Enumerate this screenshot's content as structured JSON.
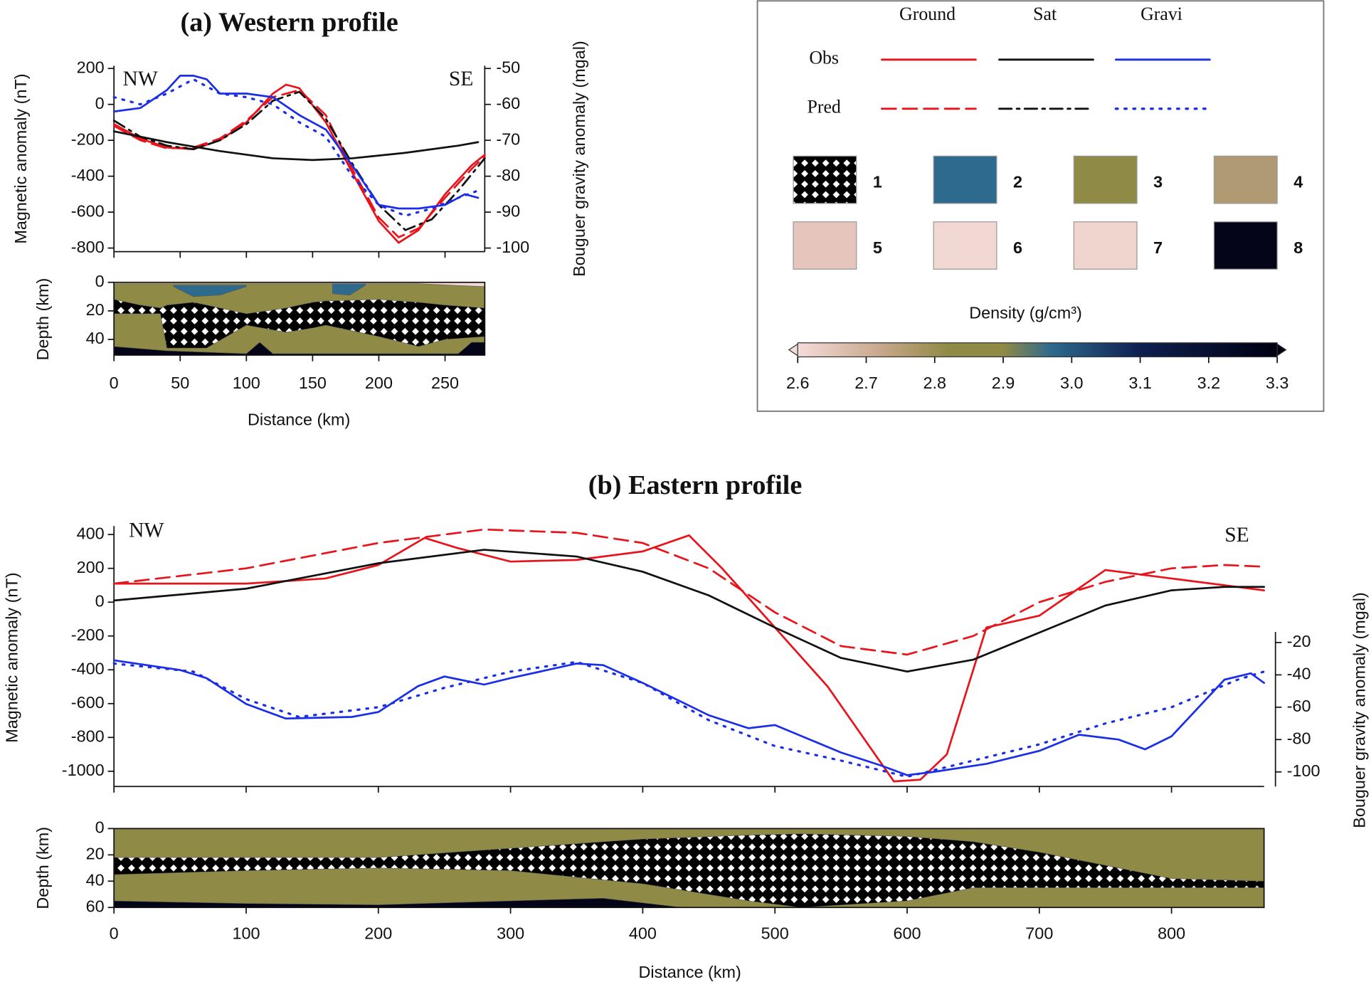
{
  "chart_data": [
    {
      "type": "line",
      "title": "(a) Western profile",
      "ylabel": "Magnetic anomaly (nT)",
      "y2label": "Bouguer gravity anomaly (mgal)",
      "annotations": [
        "NW",
        "SE"
      ],
      "xlim": [
        0,
        280
      ],
      "ylim": [
        -820,
        215
      ],
      "yticks": [
        -800,
        -600,
        -400,
        -200,
        0,
        200
      ],
      "y2lim": [
        -101,
        -49.25
      ],
      "y2ticks": [
        -100,
        -90,
        -80,
        -70,
        -60,
        -50
      ],
      "series": [
        {
          "source": "Ground",
          "name": "Obs",
          "color": "#e8141c",
          "dash": "solid",
          "x": [
            0,
            20,
            40,
            60,
            80,
            100,
            120,
            130,
            140,
            160,
            180,
            200,
            215,
            230,
            250,
            270,
            280
          ],
          "values": [
            -110,
            -190,
            -240,
            -250,
            -200,
            -100,
            60,
            110,
            90,
            -100,
            -380,
            -650,
            -770,
            -700,
            -500,
            -340,
            -280
          ]
        },
        {
          "source": "Ground",
          "name": "Pred",
          "color": "#e8141c",
          "dash": "dashed",
          "x": [
            0,
            20,
            40,
            60,
            80,
            100,
            120,
            140,
            160,
            180,
            200,
            215,
            230,
            250,
            270,
            280
          ],
          "values": [
            -120,
            -200,
            -245,
            -240,
            -190,
            -90,
            40,
            80,
            -60,
            -360,
            -630,
            -740,
            -690,
            -520,
            -360,
            -290
          ]
        },
        {
          "source": "Sat",
          "name": "Obs",
          "color": "#111111",
          "dash": "solid",
          "x": [
            0,
            40,
            80,
            120,
            150,
            180,
            220,
            260,
            275
          ],
          "values": [
            -150,
            -210,
            -260,
            -300,
            -310,
            -300,
            -270,
            -230,
            -210
          ]
        },
        {
          "source": "Sat",
          "name": "Pred",
          "color": "#111111",
          "dash": "dashdot",
          "x": [
            0,
            20,
            40,
            60,
            80,
            100,
            120,
            140,
            160,
            180,
            200,
            220,
            240,
            260,
            280
          ],
          "values": [
            -90,
            -180,
            -230,
            -250,
            -200,
            -110,
            20,
            70,
            -80,
            -330,
            -560,
            -700,
            -640,
            -480,
            -300
          ]
        },
        {
          "source": "Gravi",
          "name": "Obs",
          "color": "#1a2ee8",
          "dash": "solid",
          "axis": "y2",
          "x": [
            0,
            20,
            40,
            50,
            60,
            70,
            80,
            100,
            120,
            140,
            160,
            180,
            200,
            215,
            230,
            250,
            265,
            275
          ],
          "values": [
            -62,
            -61,
            -56,
            -52,
            -52,
            -53,
            -57,
            -57,
            -58,
            -63,
            -67,
            -77,
            -88,
            -89,
            -89,
            -88,
            -85,
            -86
          ]
        },
        {
          "source": "Gravi",
          "name": "Pred",
          "color": "#1a2ee8",
          "dash": "dotted",
          "axis": "y2",
          "x": [
            0,
            20,
            40,
            60,
            80,
            100,
            120,
            140,
            160,
            180,
            200,
            220,
            240,
            260,
            275
          ],
          "values": [
            -58,
            -60,
            -57,
            -53,
            -57,
            -58,
            -60,
            -65,
            -69,
            -80,
            -88,
            -91,
            -89,
            -86,
            -84
          ]
        }
      ]
    },
    {
      "type": "section",
      "ylabel": "Depth (km)",
      "xlabel": "Distance (km)",
      "xlim": [
        0,
        280
      ],
      "xticks": [
        0,
        50,
        100,
        150,
        200,
        250
      ],
      "ylim": [
        51,
        0
      ],
      "yticks": [
        0,
        20,
        40
      ],
      "layers": [
        {
          "unit": "3",
          "x": [
            0,
            280
          ],
          "top": [
            0,
            0
          ],
          "bottom": [
            51,
            51
          ]
        },
        {
          "unit": "6",
          "x": [
            0,
            100,
            230,
            280
          ],
          "top": [
            0,
            0,
            0,
            0
          ],
          "bottom": [
            1,
            1,
            1,
            3
          ]
        },
        {
          "unit": "2",
          "x": [
            45,
            60,
            80,
            100
          ],
          "top": [
            2,
            2,
            2,
            2
          ],
          "bottom": [
            3,
            10,
            9,
            3
          ]
        },
        {
          "unit": "2",
          "x": [
            165,
            178,
            190
          ],
          "top": [
            1,
            1,
            1
          ],
          "bottom": [
            8,
            9,
            2
          ]
        },
        {
          "unit": "1",
          "x": [
            0,
            20,
            35,
            40,
            60,
            70,
            100,
            130,
            150,
            160,
            200,
            230,
            250,
            280
          ],
          "top": [
            12,
            16,
            18,
            16,
            14,
            16,
            22,
            18,
            14,
            13,
            12,
            14,
            16,
            18
          ],
          "bottom": [
            22,
            22,
            22,
            46,
            46,
            46,
            30,
            35,
            32,
            30,
            38,
            45,
            40,
            38
          ]
        },
        {
          "unit": "8",
          "x": [
            0,
            40,
            100,
            110,
            120,
            260,
            270,
            280
          ],
          "top": [
            45,
            48,
            50,
            42,
            50,
            50,
            42,
            42
          ],
          "bottom": [
            51,
            51,
            51,
            51,
            51,
            51,
            51,
            51
          ]
        }
      ]
    },
    {
      "type": "line",
      "title": "(b) Eastern profile",
      "ylabel": "Magnetic anomaly (nT)",
      "y2label": "Bouguer gravity anomaly (mgal)",
      "annotations": [
        "NW",
        "SE"
      ],
      "xlim": [
        0,
        870
      ],
      "ylim": [
        -1090,
        450
      ],
      "yticks": [
        -1000,
        -800,
        -600,
        -400,
        -200,
        0,
        200,
        400
      ],
      "y2lim": [
        -109,
        52
      ],
      "y2ticks": [
        -100,
        -80,
        -60,
        -40,
        -20
      ],
      "series": [
        {
          "source": "Ground",
          "name": "Obs",
          "color": "#e8141c",
          "dash": "solid",
          "x": [
            0,
            100,
            160,
            200,
            235,
            260,
            300,
            350,
            400,
            435,
            460,
            500,
            540,
            590,
            610,
            630,
            660,
            700,
            750,
            800,
            870
          ],
          "values": [
            110,
            110,
            140,
            220,
            380,
            320,
            240,
            250,
            300,
            395,
            200,
            -150,
            -500,
            -1060,
            -1050,
            -900,
            -150,
            -80,
            190,
            140,
            70
          ]
        },
        {
          "source": "Ground",
          "name": "Pred",
          "color": "#e8141c",
          "dash": "dashed",
          "x": [
            0,
            100,
            200,
            280,
            350,
            400,
            450,
            500,
            550,
            600,
            650,
            700,
            750,
            800,
            840,
            870
          ],
          "values": [
            110,
            200,
            350,
            430,
            410,
            350,
            200,
            -60,
            -260,
            -310,
            -200,
            0,
            120,
            200,
            220,
            210
          ]
        },
        {
          "source": "Sat",
          "name": "Obs",
          "color": "#111111",
          "dash": "solid",
          "x": [
            0,
            100,
            200,
            280,
            350,
            400,
            450,
            500,
            550,
            600,
            650,
            700,
            750,
            800,
            840,
            870
          ],
          "values": [
            10,
            80,
            230,
            310,
            270,
            180,
            40,
            -150,
            -330,
            -410,
            -340,
            -180,
            -20,
            70,
            90,
            90
          ]
        },
        {
          "source": "Gravi",
          "name": "Obs",
          "color": "#1a2ee8",
          "dash": "solid",
          "axis": "y2",
          "x": [
            0,
            50,
            70,
            100,
            130,
            180,
            200,
            230,
            250,
            280,
            300,
            350,
            370,
            400,
            450,
            480,
            500,
            550,
            580,
            600,
            620,
            660,
            700,
            730,
            760,
            780,
            800,
            840,
            860,
            870
          ],
          "values": [
            -31,
            -37,
            -42,
            -58,
            -67,
            -66,
            -63,
            -47,
            -41,
            -46,
            -42,
            -33,
            -34,
            -45,
            -65,
            -73,
            -71,
            -88,
            -96,
            -102,
            -100,
            -95,
            -87,
            -77,
            -80,
            -86,
            -78,
            -43,
            -39,
            -45
          ]
        },
        {
          "source": "Gravi",
          "name": "Pred",
          "color": "#1a2ee8",
          "dash": "dotted",
          "axis": "y2",
          "x": [
            0,
            60,
            100,
            140,
            200,
            250,
            300,
            350,
            400,
            450,
            500,
            550,
            600,
            650,
            700,
            750,
            800,
            850,
            870
          ],
          "values": [
            -33,
            -38,
            -55,
            -66,
            -60,
            -48,
            -38,
            -32,
            -45,
            -68,
            -84,
            -93,
            -103,
            -93,
            -83,
            -70,
            -60,
            -43,
            -38
          ]
        }
      ]
    },
    {
      "type": "section",
      "ylabel": "Depth (km)",
      "xlabel": "Distance (km)",
      "xlim": [
        0,
        870
      ],
      "xticks": [
        0,
        100,
        200,
        300,
        400,
        500,
        600,
        700,
        800
      ],
      "ylim": [
        60,
        0
      ],
      "yticks": [
        0,
        20,
        40,
        60
      ],
      "layers": [
        {
          "unit": "3",
          "x": [
            0,
            870
          ],
          "top": [
            0,
            0
          ],
          "bottom": [
            60,
            60
          ]
        },
        {
          "unit": "1",
          "x": [
            0,
            100,
            200,
            300,
            400,
            480,
            520,
            600,
            650,
            700,
            800,
            870
          ],
          "top": [
            22,
            22,
            22,
            15,
            8,
            5,
            4,
            6,
            10,
            18,
            38,
            40
          ],
          "bottom": [
            35,
            32,
            30,
            32,
            42,
            55,
            60,
            55,
            45,
            45,
            45,
            45
          ]
        },
        {
          "unit": "8",
          "x": [
            0,
            100,
            200,
            300,
            370,
            430
          ],
          "top": [
            55,
            57,
            58,
            55,
            53,
            60
          ],
          "bottom": [
            60,
            60,
            60,
            60,
            60,
            60
          ]
        }
      ]
    },
    {
      "type": "legend",
      "units": [
        {
          "label": "1",
          "color": "#000000",
          "pattern": true
        },
        {
          "label": "2",
          "color": "#2e6a8e"
        },
        {
          "label": "3",
          "color": "#8f8a45"
        },
        {
          "label": "4",
          "color": "#b09a73"
        },
        {
          "label": "5",
          "color": "#e6c6bc"
        },
        {
          "label": "6",
          "color": "#f2d8d2"
        },
        {
          "label": "7",
          "color": "#f0d4ce"
        },
        {
          "label": "8",
          "color": "#05051a"
        }
      ],
      "colorbar": {
        "label": "Density (g/cm³)",
        "xlim": [
          2.6,
          3.3
        ],
        "xticks": [
          2.6,
          2.7,
          2.8,
          2.9,
          {
            "value": 3,
            "label": "3.0"
          },
          3.1,
          3.2,
          3.3
        ],
        "stops": [
          {
            "value": 2.6,
            "color": "#f4dcd8"
          },
          {
            "value": 2.72,
            "color": "#c8a88c"
          },
          {
            "value": 2.82,
            "color": "#8f8a45"
          },
          {
            "value": 2.9,
            "color": "#8f8a45"
          },
          {
            "value": 2.97,
            "color": "#2e6a8e"
          },
          {
            "value": 3.1,
            "color": "#0e1f50"
          },
          {
            "value": 3.3,
            "color": "#000010"
          }
        ]
      }
    }
  ]
}
